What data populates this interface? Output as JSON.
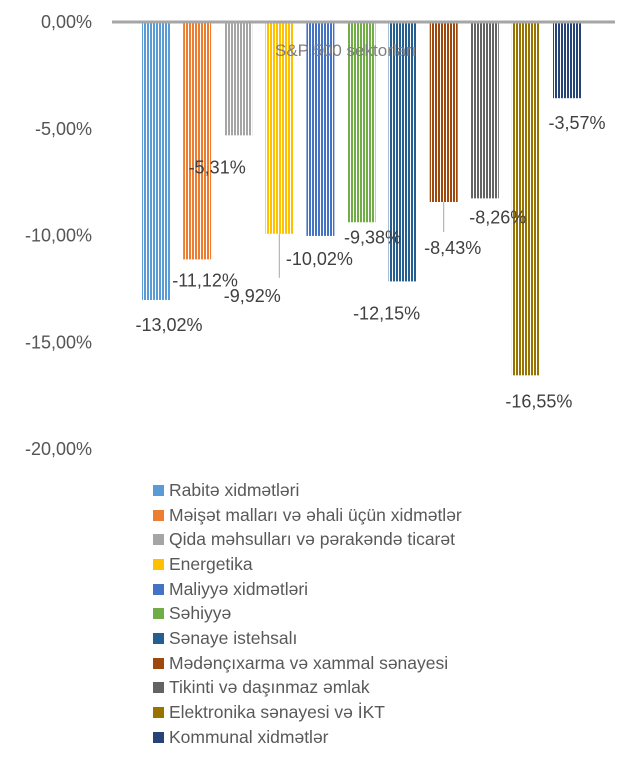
{
  "chart_data": {
    "type": "bar",
    "subtitle": "S&P 500 sektorları",
    "ylim": [
      -20,
      0
    ],
    "y_ticks": [
      {
        "value": 0,
        "label": "0,00%"
      },
      {
        "value": -5,
        "label": "-5,00%"
      },
      {
        "value": -10,
        "label": "-10,00%"
      },
      {
        "value": -15,
        "label": "-15,00%"
      },
      {
        "value": -20,
        "label": "-20,00%"
      }
    ],
    "grid": false,
    "legend_position": "bottom",
    "series": [
      {
        "name": "Rabitə xidmətləri",
        "value": -13.02,
        "label": "-13,02%",
        "color": "#5B9BD5"
      },
      {
        "name": "Məişət malları və əhali üçün xidmətlər",
        "value": -11.12,
        "label": "-11,12%",
        "color": "#ED7D31"
      },
      {
        "name": "Qida məhsulları və pərakəndə ticarət",
        "value": -5.31,
        "label": "-5,31%",
        "color": "#A5A5A5"
      },
      {
        "name": "Energetika",
        "value": -9.92,
        "label": "-9,92%",
        "color": "#FFC000"
      },
      {
        "name": "Maliyyə xidmətləri",
        "value": -10.02,
        "label": "-10,02%",
        "color": "#4472C4"
      },
      {
        "name": "Səhiyyə",
        "value": -9.38,
        "label": "-9,38%",
        "color": "#70AD47"
      },
      {
        "name": "Sənaye istehsalı",
        "value": -12.15,
        "label": "-12,15%",
        "color": "#255E91"
      },
      {
        "name": "Mədənçıxarma və xammal sənayesi",
        "value": -8.43,
        "label": "-8,43%",
        "color": "#9E480E"
      },
      {
        "name": "Tikinti və daşınmaz əmlak",
        "value": -8.26,
        "label": "-8,26%",
        "color": "#636363"
      },
      {
        "name": "Elektronika sənayesi və İKT",
        "value": -16.55,
        "label": "-16,55%",
        "color": "#997300"
      },
      {
        "name": "Kommunal xidmətlər",
        "value": -3.57,
        "label": "-3,57%",
        "color": "#264478"
      }
    ]
  }
}
